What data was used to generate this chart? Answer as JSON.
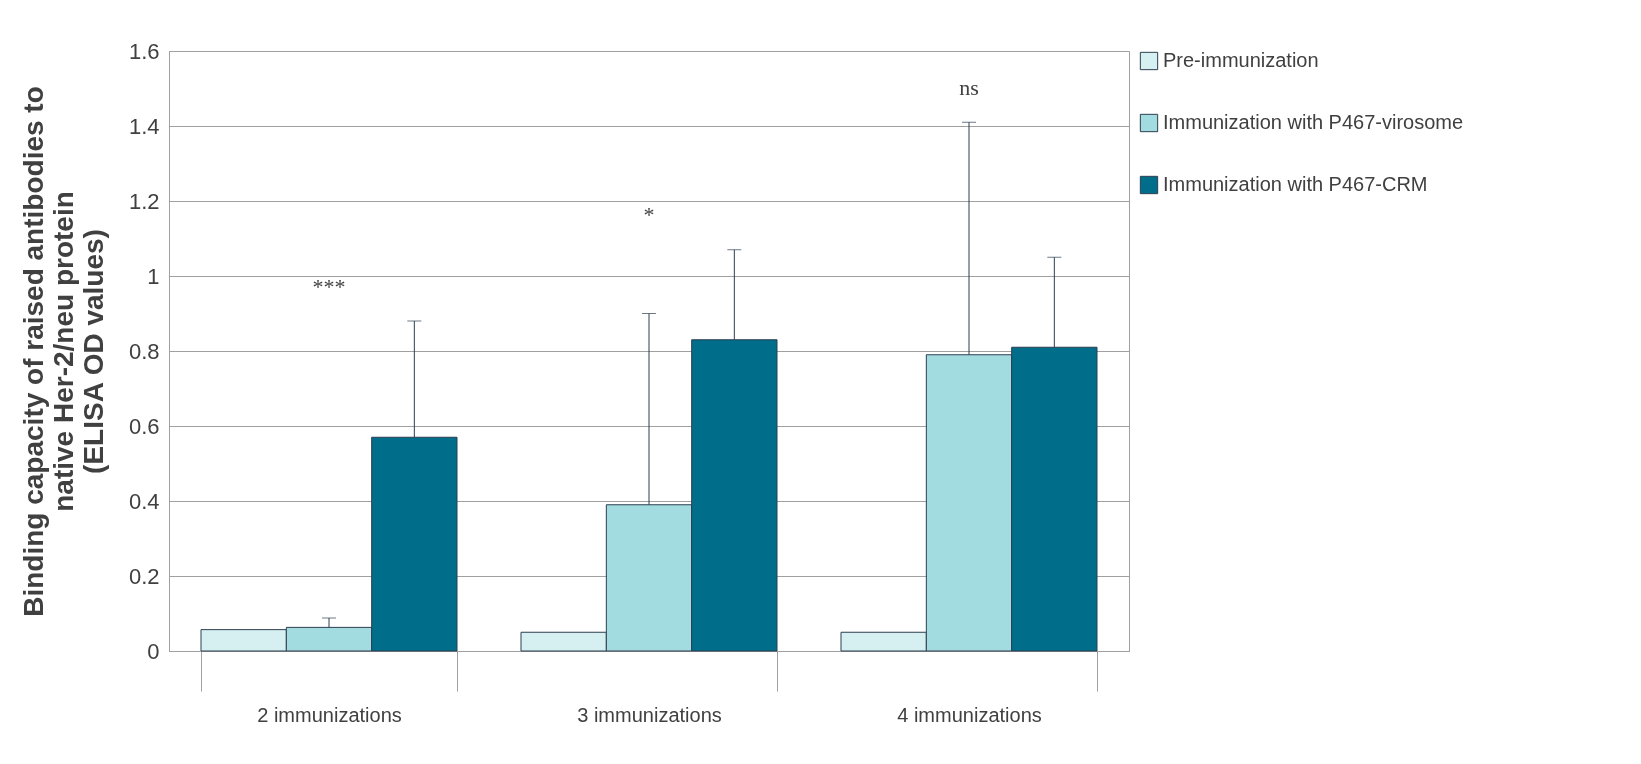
{
  "chart_data": {
    "type": "bar",
    "ylabel": "Binding capacity of raised antibodies to\nnative Her-2/neu protein\n(ELISA OD values)",
    "categories": [
      "2 immunizations",
      "3 immunizations",
      "4 immunizations"
    ],
    "series": [
      {
        "name": "Pre-immunization",
        "color": "#d6f0f2",
        "values": [
          0.057,
          0.05,
          0.05
        ],
        "errors": [
          null,
          null,
          null
        ]
      },
      {
        "name": "Immunization with P467-virosome",
        "color": "#a3dce0",
        "values": [
          0.063,
          0.39,
          0.79
        ],
        "errors": [
          [
            0.063,
            0.088
          ],
          [
            0.39,
            0.9
          ],
          [
            0.79,
            1.41
          ]
        ]
      },
      {
        "name": "Immunization with P467-CRM",
        "color": "#006e8a",
        "values": [
          0.57,
          0.83,
          0.81
        ],
        "errors": [
          [
            0.57,
            0.88
          ],
          [
            0.83,
            1.07
          ],
          [
            0.81,
            1.05
          ]
        ]
      }
    ],
    "ylim": [
      0,
      1.6
    ],
    "yticks": [
      0,
      0.2,
      0.4,
      0.6,
      0.8,
      1,
      1.2,
      1.4,
      1.6
    ],
    "grid": "y",
    "legend": "right",
    "annotations": [
      "***",
      "*",
      "ns"
    ]
  }
}
